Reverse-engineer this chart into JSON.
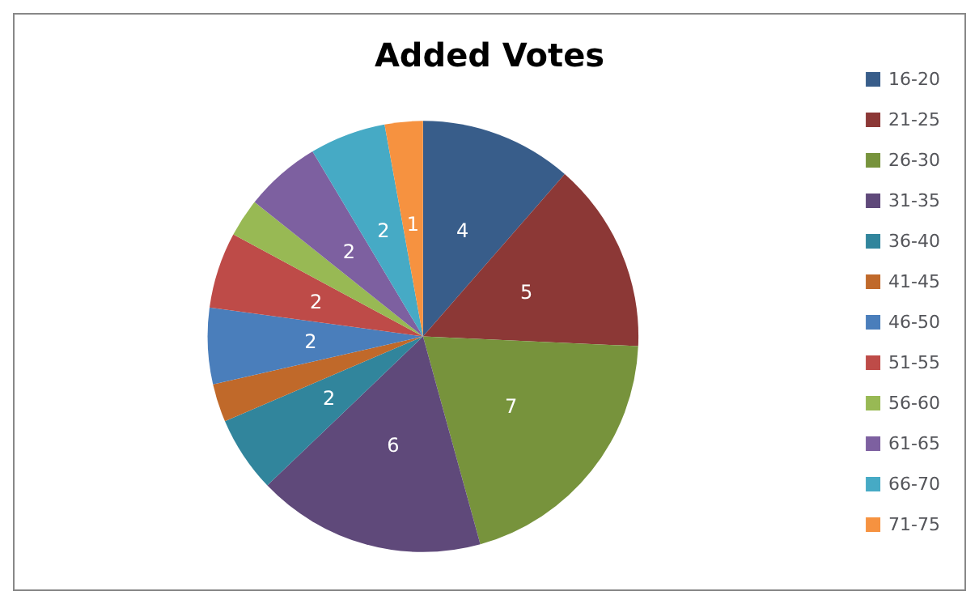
{
  "chart_data": {
    "type": "pie",
    "title": "Added Votes",
    "categories": [
      "16-20",
      "21-25",
      "26-30",
      "31-35",
      "36-40",
      "41-45",
      "46-50",
      "51-55",
      "56-60",
      "61-65",
      "66-70",
      "71-75"
    ],
    "values": [
      4,
      5,
      7,
      6,
      2,
      1,
      2,
      2,
      1,
      2,
      2,
      1
    ],
    "value_labels": [
      "4",
      "5",
      "7",
      "6",
      "2",
      null,
      "2",
      "2",
      null,
      "2",
      "2",
      "1"
    ],
    "colors": [
      "#385d8a",
      "#8c3836",
      "#77933c",
      "#5f497a",
      "#31859c",
      "#c0692a",
      "#4a7ebb",
      "#be4b48",
      "#98b954",
      "#7d60a0",
      "#46aac5",
      "#f69240"
    ],
    "legend": "right"
  }
}
